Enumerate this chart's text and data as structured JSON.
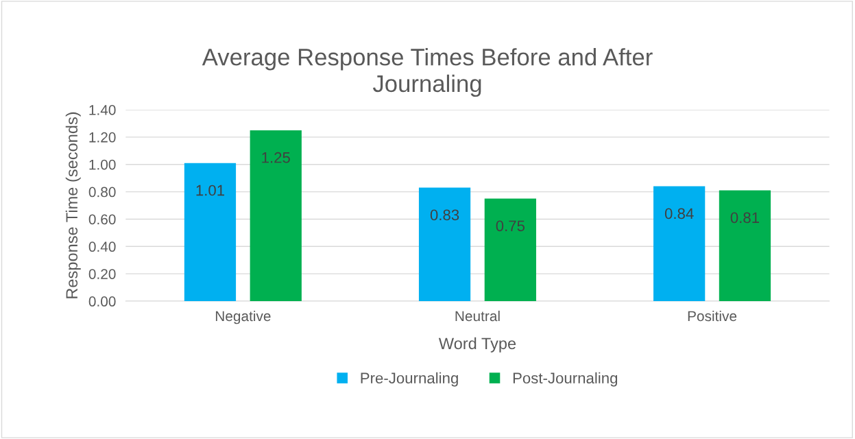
{
  "chart_data": {
    "type": "bar",
    "title": "Average Response Times Before and After\nJournaling",
    "xlabel": "Word Type",
    "ylabel": "Response Time (seconds)",
    "categories": [
      "Negative",
      "Neutral",
      "Positive"
    ],
    "series": [
      {
        "name": "Pre-Journaling",
        "color": "#00b0f0",
        "values": [
          1.01,
          0.83,
          0.84
        ]
      },
      {
        "name": "Post-Journaling",
        "color": "#00b050",
        "values": [
          1.25,
          0.75,
          0.81
        ]
      }
    ],
    "ylim": [
      0,
      1.4
    ],
    "yticks": [
      {
        "value": 0,
        "label": "0.00"
      },
      {
        "value": 0.2,
        "label": "0.20"
      },
      {
        "value": 0.4,
        "label": "0.40"
      },
      {
        "value": 0.6,
        "label": "0.60"
      },
      {
        "value": 0.8,
        "label": "0.80"
      },
      {
        "value": 1.0,
        "label": "1.00"
      },
      {
        "value": 1.2,
        "label": "1.20"
      },
      {
        "value": 1.4,
        "label": "1.40"
      }
    ],
    "grid": "y",
    "legend": "bottom",
    "data_labels": true
  }
}
